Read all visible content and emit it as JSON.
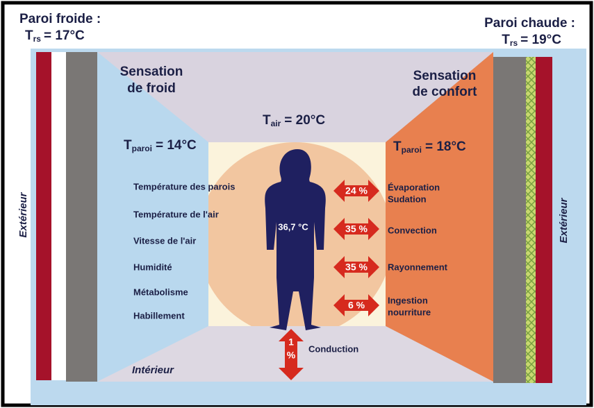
{
  "left_wall": {
    "title": "Paroi froide :",
    "symbol": "T",
    "subscript": "rs",
    "value": "= 17°C"
  },
  "right_wall": {
    "title": "Paroi chaude :",
    "symbol": "T",
    "subscript": "rs",
    "value": "= 19°C"
  },
  "sensation_cold": [
    "Sensation",
    "de froid"
  ],
  "sensation_comfort": [
    "Sensation",
    "de confort"
  ],
  "air_temp": {
    "symbol": "T",
    "subscript": "air",
    "value": "= 20°C"
  },
  "left_surface_temp": {
    "symbol": "T",
    "subscript": "paroi",
    "value": "= 14°C"
  },
  "right_surface_temp": {
    "symbol": "T",
    "subscript": "paroi",
    "value": "= 18°C"
  },
  "factors": [
    "Température des parois",
    "Température de l'air",
    "Vitesse de l'air",
    "Humidité",
    "Métabolisme",
    "Habillement"
  ],
  "body_temp": "36,7 °C",
  "exchanges": [
    {
      "percent": "24 %",
      "label": [
        "Évaporation",
        "Sudation"
      ]
    },
    {
      "percent": "35 %",
      "label": [
        "Convection"
      ]
    },
    {
      "percent": "35 %",
      "label": [
        "Rayonnement"
      ]
    },
    {
      "percent": "6 %",
      "label": [
        "Ingestion",
        "nourriture"
      ]
    }
  ],
  "conduction": {
    "percent": [
      "1",
      "%"
    ],
    "label": "Conduction"
  },
  "interior": "Intérieur",
  "exterior_left": "Extérieur",
  "exterior_right": "Extérieur"
}
